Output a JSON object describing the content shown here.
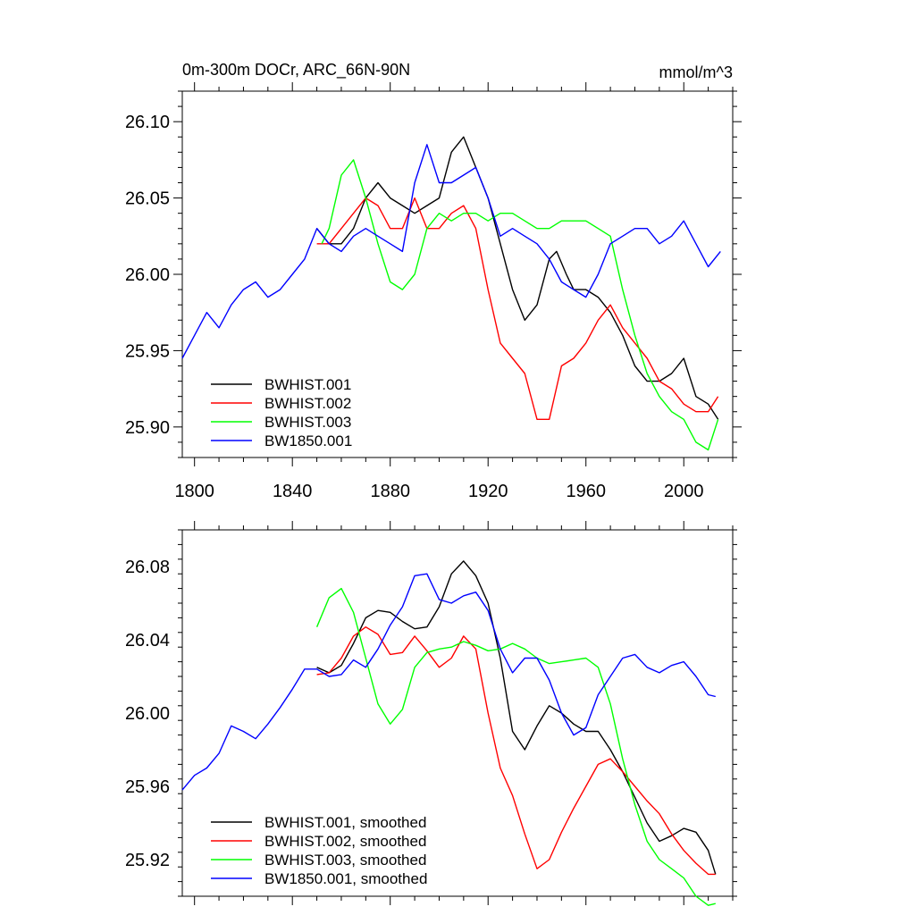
{
  "chart_data": [
    {
      "type": "line",
      "title": "0m-300m DOCr, ARC_66N-90N",
      "units": "mmol/m^3",
      "xlabel": "",
      "ylabel": "",
      "xlim": [
        1795,
        2020
      ],
      "ylim": [
        25.88,
        26.12
      ],
      "xticks": [
        1800,
        1840,
        1880,
        1920,
        1960,
        2000
      ],
      "yticks": [
        25.9,
        25.95,
        26.0,
        26.05,
        26.1
      ],
      "ytick_labels": [
        "25.90",
        "25.95",
        "26.00",
        "26.05",
        "26.10"
      ],
      "xtick_labels": [
        "1800",
        "1840",
        "1880",
        "1920",
        "1960",
        "2000"
      ],
      "legend": {
        "placement": "bottom-left"
      },
      "series": [
        {
          "name": "BWHIST.001",
          "color": "#000000",
          "x": [
            1850,
            1855,
            1860,
            1865,
            1870,
            1875,
            1880,
            1885,
            1890,
            1895,
            1900,
            1905,
            1910,
            1915,
            1920,
            1925,
            1930,
            1935,
            1940,
            1945,
            1948,
            1952,
            1955,
            1960,
            1965,
            1970,
            1975,
            1980,
            1985,
            1990,
            1995,
            2000,
            2005,
            2010,
            2014
          ],
          "y": [
            26.03,
            26.02,
            26.02,
            26.03,
            26.05,
            26.06,
            26.05,
            26.045,
            26.04,
            26.045,
            26.05,
            26.08,
            26.09,
            26.07,
            26.05,
            26.02,
            25.99,
            25.97,
            25.98,
            26.01,
            26.015,
            26.0,
            25.99,
            25.99,
            25.985,
            25.975,
            25.96,
            25.94,
            25.93,
            25.93,
            25.935,
            25.945,
            25.92,
            25.915,
            25.905
          ]
        },
        {
          "name": "BWHIST.002",
          "color": "#ff0000",
          "x": [
            1850,
            1855,
            1860,
            1865,
            1870,
            1875,
            1880,
            1885,
            1890,
            1895,
            1900,
            1905,
            1910,
            1915,
            1920,
            1925,
            1930,
            1935,
            1940,
            1945,
            1950,
            1955,
            1960,
            1965,
            1970,
            1975,
            1980,
            1985,
            1990,
            1995,
            2000,
            2005,
            2010,
            2014
          ],
          "y": [
            26.02,
            26.02,
            26.03,
            26.04,
            26.05,
            26.045,
            26.03,
            26.03,
            26.05,
            26.03,
            26.03,
            26.04,
            26.045,
            26.03,
            25.99,
            25.955,
            25.945,
            25.935,
            25.905,
            25.905,
            25.94,
            25.945,
            25.955,
            25.97,
            25.98,
            25.965,
            25.955,
            25.945,
            25.93,
            25.925,
            25.915,
            25.91,
            25.91,
            25.92
          ]
        },
        {
          "name": "BWHIST.003",
          "color": "#00ff00",
          "x": [
            1852,
            1855,
            1860,
            1865,
            1870,
            1875,
            1880,
            1885,
            1890,
            1895,
            1900,
            1905,
            1910,
            1915,
            1920,
            1925,
            1930,
            1935,
            1940,
            1945,
            1950,
            1955,
            1960,
            1965,
            1970,
            1975,
            1980,
            1985,
            1990,
            1995,
            2000,
            2005,
            2010,
            2014
          ],
          "y": [
            26.02,
            26.03,
            26.065,
            26.075,
            26.05,
            26.02,
            25.995,
            25.99,
            26.0,
            26.03,
            26.04,
            26.035,
            26.04,
            26.04,
            26.035,
            26.04,
            26.04,
            26.035,
            26.03,
            26.03,
            26.035,
            26.035,
            26.035,
            26.03,
            26.025,
            25.99,
            25.96,
            25.935,
            25.92,
            25.91,
            25.905,
            25.89,
            25.885,
            25.905
          ]
        },
        {
          "name": "BW1850.001",
          "color": "#0000ff",
          "x": [
            1795,
            1800,
            1805,
            1810,
            1815,
            1820,
            1825,
            1830,
            1835,
            1840,
            1845,
            1850,
            1855,
            1860,
            1865,
            1870,
            1875,
            1880,
            1885,
            1890,
            1895,
            1900,
            1905,
            1910,
            1915,
            1920,
            1925,
            1930,
            1935,
            1940,
            1945,
            1950,
            1955,
            1960,
            1965,
            1970,
            1975,
            1980,
            1985,
            1990,
            1995,
            2000,
            2005,
            2010,
            2015
          ],
          "y": [
            25.945,
            25.96,
            25.975,
            25.965,
            25.98,
            25.99,
            25.995,
            25.985,
            25.99,
            26.0,
            26.01,
            26.03,
            26.02,
            26.015,
            26.025,
            26.03,
            26.025,
            26.02,
            26.015,
            26.06,
            26.085,
            26.06,
            26.06,
            26.065,
            26.07,
            26.05,
            26.025,
            26.03,
            26.025,
            26.02,
            26.01,
            25.995,
            25.99,
            25.985,
            26.0,
            26.02,
            26.025,
            26.03,
            26.03,
            26.02,
            26.025,
            26.035,
            26.02,
            26.005,
            26.015
          ]
        }
      ]
    },
    {
      "type": "line",
      "title": "",
      "xlabel": "",
      "ylabel": "",
      "xlim": [
        1795,
        2020
      ],
      "ylim": [
        25.9,
        26.1
      ],
      "xticks": [
        1800,
        1840,
        1880,
        1920,
        1960,
        2000
      ],
      "yticks": [
        25.92,
        25.96,
        26.0,
        26.04,
        26.08
      ],
      "ytick_labels": [
        "25.92",
        "25.96",
        "26.00",
        "26.04",
        "26.08"
      ],
      "legend": {
        "placement": "bottom-left"
      },
      "series": [
        {
          "name": "BWHIST.001, smoothed",
          "color": "#000000",
          "x": [
            1850,
            1855,
            1860,
            1865,
            1870,
            1875,
            1880,
            1885,
            1890,
            1895,
            1900,
            1905,
            1910,
            1915,
            1920,
            1925,
            1930,
            1935,
            1940,
            1945,
            1950,
            1955,
            1960,
            1965,
            1970,
            1975,
            1980,
            1985,
            1990,
            1995,
            2000,
            2005,
            2010,
            2013
          ],
          "y": [
            26.025,
            26.022,
            26.026,
            26.038,
            26.052,
            26.056,
            26.055,
            26.05,
            26.046,
            26.047,
            26.058,
            26.076,
            26.083,
            26.075,
            26.06,
            26.03,
            25.99,
            25.98,
            25.993,
            26.004,
            26.0,
            25.994,
            25.99,
            25.99,
            25.98,
            25.968,
            25.954,
            25.94,
            25.93,
            25.933,
            25.937,
            25.935,
            25.925,
            25.912
          ]
        },
        {
          "name": "BWHIST.002, smoothed",
          "color": "#ff0000",
          "x": [
            1850,
            1855,
            1860,
            1865,
            1870,
            1875,
            1880,
            1885,
            1890,
            1895,
            1900,
            1905,
            1910,
            1915,
            1920,
            1925,
            1930,
            1935,
            1940,
            1945,
            1950,
            1955,
            1960,
            1965,
            1970,
            1975,
            1980,
            1985,
            1990,
            1995,
            2000,
            2005,
            2010,
            2013
          ],
          "y": [
            26.021,
            26.022,
            26.03,
            26.042,
            26.047,
            26.043,
            26.032,
            26.033,
            26.042,
            26.034,
            26.025,
            26.03,
            26.042,
            26.035,
            26.0,
            25.97,
            25.955,
            25.934,
            25.915,
            25.92,
            25.935,
            25.948,
            25.96,
            25.972,
            25.975,
            25.968,
            25.96,
            25.952,
            25.945,
            25.934,
            25.925,
            25.918,
            25.912,
            25.912
          ]
        },
        {
          "name": "BWHIST.003, smoothed",
          "color": "#00ff00",
          "x": [
            1850,
            1855,
            1860,
            1865,
            1870,
            1875,
            1880,
            1885,
            1890,
            1895,
            1900,
            1905,
            1910,
            1915,
            1920,
            1925,
            1930,
            1935,
            1940,
            1945,
            1950,
            1955,
            1960,
            1965,
            1970,
            1975,
            1980,
            1985,
            1990,
            1995,
            2000,
            2005,
            2010,
            2013
          ],
          "y": [
            26.047,
            26.063,
            26.068,
            26.055,
            26.03,
            26.005,
            25.994,
            26.002,
            26.025,
            26.033,
            26.035,
            26.036,
            26.039,
            26.037,
            26.034,
            26.035,
            26.038,
            26.035,
            26.03,
            26.027,
            26.028,
            26.029,
            26.03,
            26.025,
            26.005,
            25.975,
            25.95,
            25.93,
            25.92,
            25.915,
            25.91,
            25.9,
            25.895,
            25.896
          ]
        },
        {
          "name": "BW1850.001, smoothed",
          "color": "#0000ff",
          "x": [
            1795,
            1800,
            1805,
            1810,
            1815,
            1820,
            1825,
            1830,
            1835,
            1840,
            1845,
            1850,
            1855,
            1860,
            1865,
            1870,
            1875,
            1880,
            1885,
            1890,
            1895,
            1900,
            1905,
            1910,
            1915,
            1920,
            1925,
            1930,
            1935,
            1940,
            1945,
            1950,
            1955,
            1960,
            1965,
            1970,
            1975,
            1980,
            1985,
            1990,
            1995,
            2000,
            2005,
            2010,
            2013
          ],
          "y": [
            25.958,
            25.966,
            25.97,
            25.978,
            25.993,
            25.99,
            25.986,
            25.994,
            26.003,
            26.013,
            26.024,
            26.024,
            26.02,
            26.021,
            26.029,
            26.025,
            26.035,
            26.048,
            26.058,
            26.075,
            26.076,
            26.062,
            26.06,
            26.064,
            26.066,
            26.056,
            26.035,
            26.022,
            26.03,
            26.03,
            26.018,
            26.0,
            25.988,
            25.992,
            26.01,
            26.02,
            26.03,
            26.032,
            26.025,
            26.022,
            26.026,
            26.028,
            26.02,
            26.01,
            26.009
          ]
        }
      ]
    }
  ]
}
